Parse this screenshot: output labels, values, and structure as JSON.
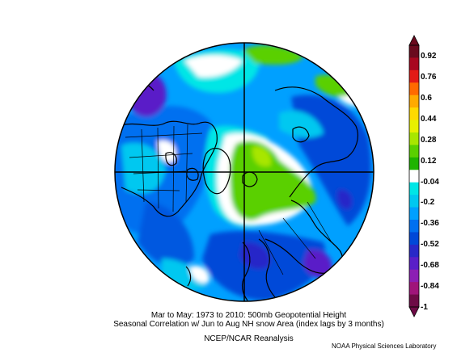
{
  "map": {
    "projection": "north polar stereographic",
    "variable": "500mb Geopotential Height seasonal correlation"
  },
  "colorbar": {
    "labels": [
      "0.92",
      "0.76",
      "0.6",
      "0.44",
      "0.28",
      "0.12",
      "-0.04",
      "-0.2",
      "-0.36",
      "-0.52",
      "-0.68",
      "-0.84",
      "-1"
    ],
    "colors": [
      "#6a0a1e",
      "#a8071f",
      "#e21a16",
      "#ff6a00",
      "#ffaa00",
      "#ffd900",
      "#e8f000",
      "#a8e600",
      "#5ad000",
      "#1eb400",
      "#ffffff",
      "#00e6e6",
      "#00c8f0",
      "#00a0ff",
      "#0070f0",
      "#0048d8",
      "#2828c8",
      "#5a1ec8",
      "#8c1eb4",
      "#a0147a",
      "#6e0a46"
    ]
  },
  "caption": {
    "line1": "Mar to May: 1973 to 2010: 500mb Geopotential Height",
    "line2": "Seasonal Correlation w/ Jun to Aug NH snow Area (index lags by 3 months)",
    "line3": "NCEP/NCAR Reanalysis"
  },
  "credit": "NOAA Physical Sciences Laboratory"
}
